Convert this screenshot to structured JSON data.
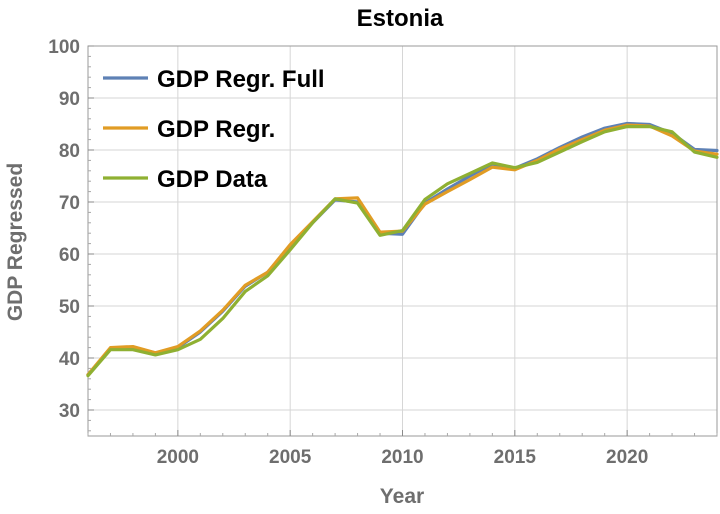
{
  "chart_data": {
    "type": "line",
    "title": "Estonia",
    "xlabel": "Year",
    "ylabel": "GDP Regressed",
    "xlim": [
      1996,
      2024
    ],
    "ylim": [
      25,
      100
    ],
    "xticks": [
      2000,
      2005,
      2010,
      2015,
      2020
    ],
    "yticks": [
      30,
      40,
      50,
      60,
      70,
      80,
      90,
      100
    ],
    "grid": true,
    "legend_position": "top-left",
    "x": [
      1996,
      1997,
      1998,
      1999,
      2000,
      2001,
      2002,
      2003,
      2004,
      2005,
      2006,
      2007,
      2008,
      2009,
      2010,
      2011,
      2012,
      2013,
      2014,
      2015,
      2016,
      2017,
      2018,
      2019,
      2020,
      2021,
      2022,
      2023,
      2024
    ],
    "series": [
      {
        "name": "GDP Regr. Full",
        "color": "#5e81b5",
        "values": [
          36.8,
          41.8,
          42.0,
          41.0,
          42.0,
          45.0,
          49.0,
          53.8,
          56.5,
          61.5,
          66.0,
          70.4,
          70.0,
          64.0,
          63.8,
          69.8,
          72.5,
          75.0,
          77.3,
          76.5,
          78.3,
          80.5,
          82.5,
          84.2,
          85.1,
          84.9,
          83.2,
          80.1,
          79.9
        ]
      },
      {
        "name": "GDP Regr.",
        "color": "#e19c24",
        "values": [
          36.8,
          42.0,
          42.2,
          41.0,
          42.2,
          45.2,
          49.2,
          54.0,
          56.5,
          61.8,
          66.2,
          70.6,
          70.8,
          64.2,
          64.4,
          69.6,
          72.0,
          74.3,
          76.7,
          76.2,
          78.0,
          80.2,
          82.0,
          83.8,
          84.8,
          84.6,
          82.7,
          79.8,
          79.2
        ]
      },
      {
        "name": "GDP Data",
        "color": "#8fb032",
        "values": [
          36.6,
          41.6,
          41.6,
          40.6,
          41.6,
          43.6,
          47.6,
          52.8,
          55.8,
          60.8,
          66.0,
          70.6,
          69.8,
          63.6,
          64.5,
          70.5,
          73.5,
          75.5,
          77.5,
          76.6,
          77.6,
          79.6,
          81.6,
          83.5,
          84.5,
          84.5,
          83.5,
          79.6,
          78.6
        ]
      }
    ]
  }
}
